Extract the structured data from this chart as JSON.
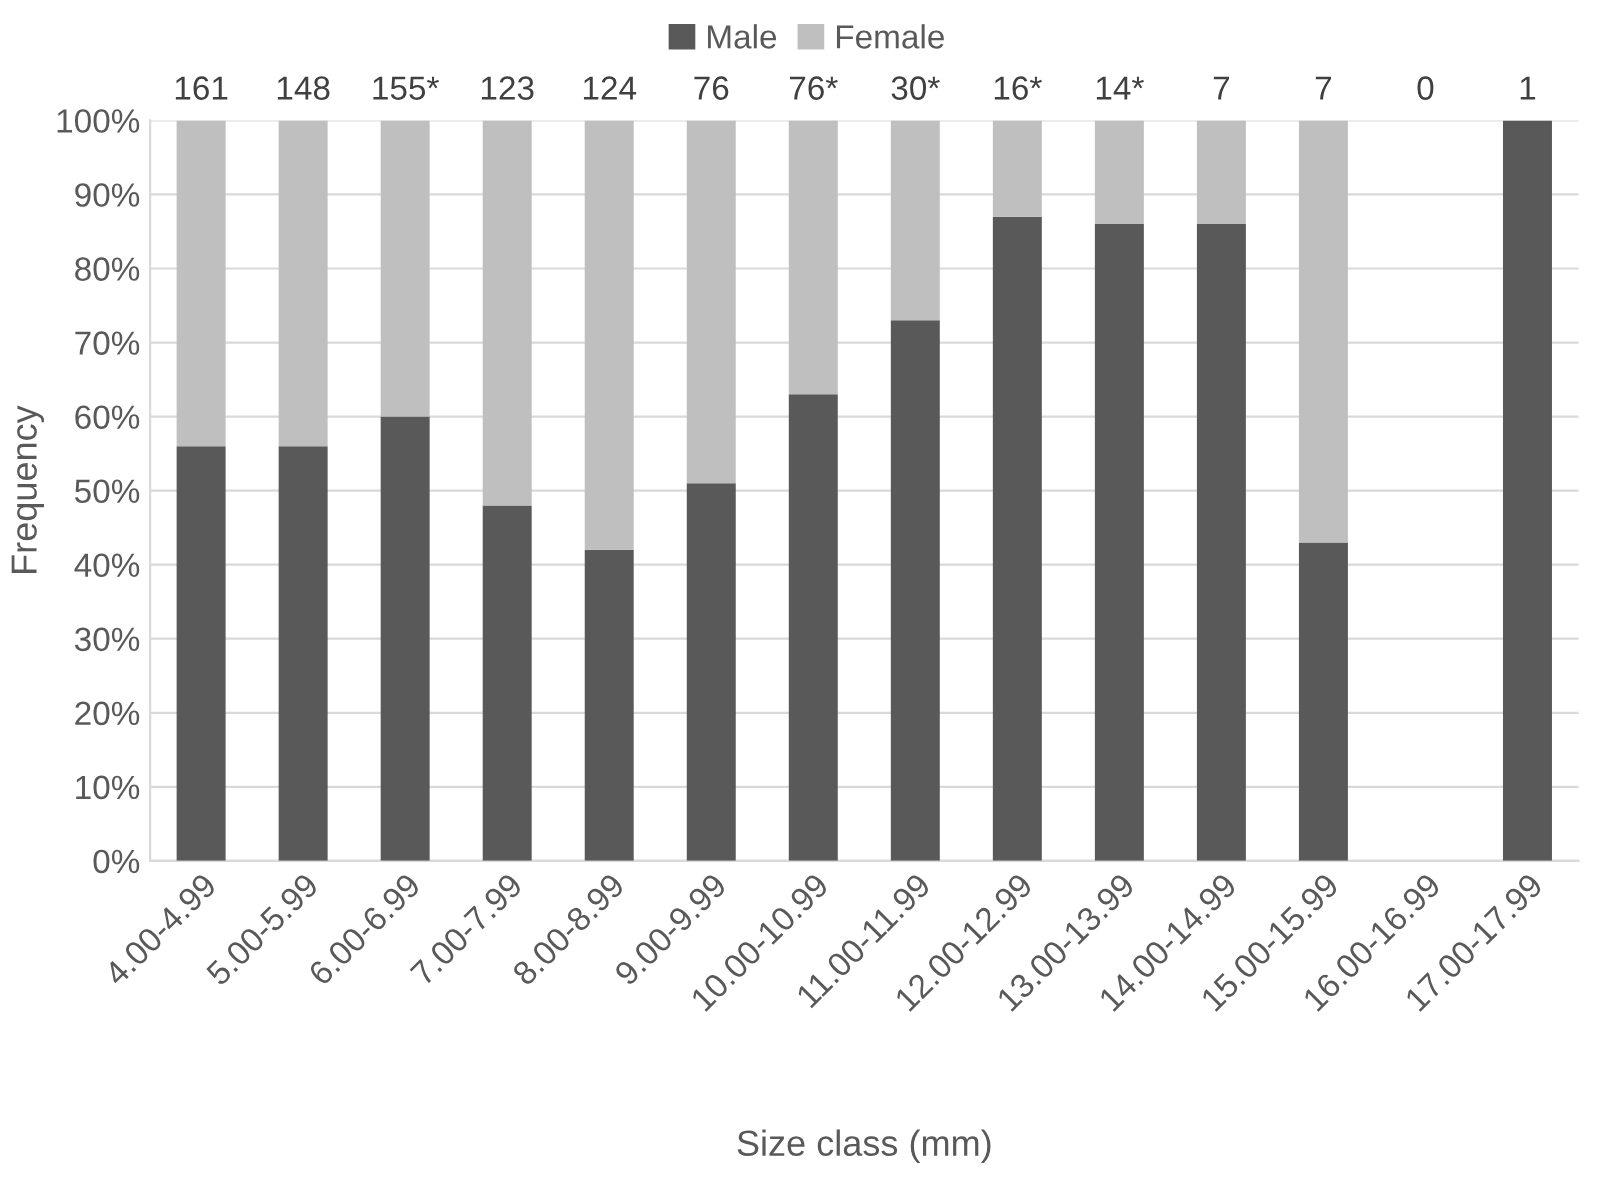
{
  "chart_data": {
    "type": "bar",
    "stacked": true,
    "xlabel": "Size class (mm)",
    "ylabel": "Frequency",
    "categories": [
      "4.00-4.99",
      "5.00-5.99",
      "6.00-6.99",
      "7.00-7.99",
      "8.00-8.99",
      "9.00-9.99",
      "10.00-10.99",
      "11.00-11.99",
      "12.00-12.99",
      "13.00-13.99",
      "14.00-14.99",
      "15.00-15.99",
      "16.00-16.99",
      "17.00-17.99"
    ],
    "series": [
      {
        "name": "Male",
        "color": "#595959",
        "values": [
          56,
          56,
          60,
          48,
          42,
          51,
          63,
          73,
          87,
          86,
          86,
          43,
          0,
          100
        ]
      },
      {
        "name": "Female",
        "color": "#bfbfbf",
        "values": [
          44,
          44,
          40,
          52,
          58,
          49,
          37,
          27,
          13,
          14,
          14,
          57,
          0,
          0
        ]
      }
    ],
    "annotations": [
      {
        "text": "161",
        "x": "4.00-4.99",
        "y": 100
      },
      {
        "text": "148",
        "x": "5.00-5.99",
        "y": 100
      },
      {
        "text": "155*",
        "x": "6.00-6.99",
        "y": 100
      },
      {
        "text": "123",
        "x": "7.00-7.99",
        "y": 100
      },
      {
        "text": "124",
        "x": "8.00-8.99",
        "y": 100
      },
      {
        "text": "76",
        "x": "9.00-9.99",
        "y": 100
      },
      {
        "text": "76*",
        "x": "10.00-10.99",
        "y": 100
      },
      {
        "text": "30*",
        "x": "11.00-11.99",
        "y": 100
      },
      {
        "text": "16*",
        "x": "12.00-12.99",
        "y": 100
      },
      {
        "text": "14*",
        "x": "13.00-13.99",
        "y": 100
      },
      {
        "text": "7",
        "x": "14.00-14.99",
        "y": 100
      },
      {
        "text": "7",
        "x": "15.00-15.99",
        "y": 100
      },
      "0",
      {
        "text": "1",
        "x": "17.00-17.99",
        "y": 100
      }
    ],
    "ylim": [
      0,
      100
    ],
    "yticks": [
      {
        "value": 0,
        "label": "0%"
      },
      {
        "value": 10,
        "label": "10%"
      },
      {
        "value": 20,
        "label": "20%"
      },
      {
        "value": 30,
        "label": "30%"
      },
      {
        "value": 40,
        "label": "40%"
      },
      {
        "value": 50,
        "label": "50%"
      },
      {
        "value": 60,
        "label": "60%"
      },
      {
        "value": 70,
        "label": "70%"
      },
      {
        "value": 80,
        "label": "80%"
      },
      {
        "value": 90,
        "label": "90%"
      },
      {
        "value": 100,
        "label": "100%"
      }
    ],
    "grid": "y",
    "legend": "top"
  }
}
